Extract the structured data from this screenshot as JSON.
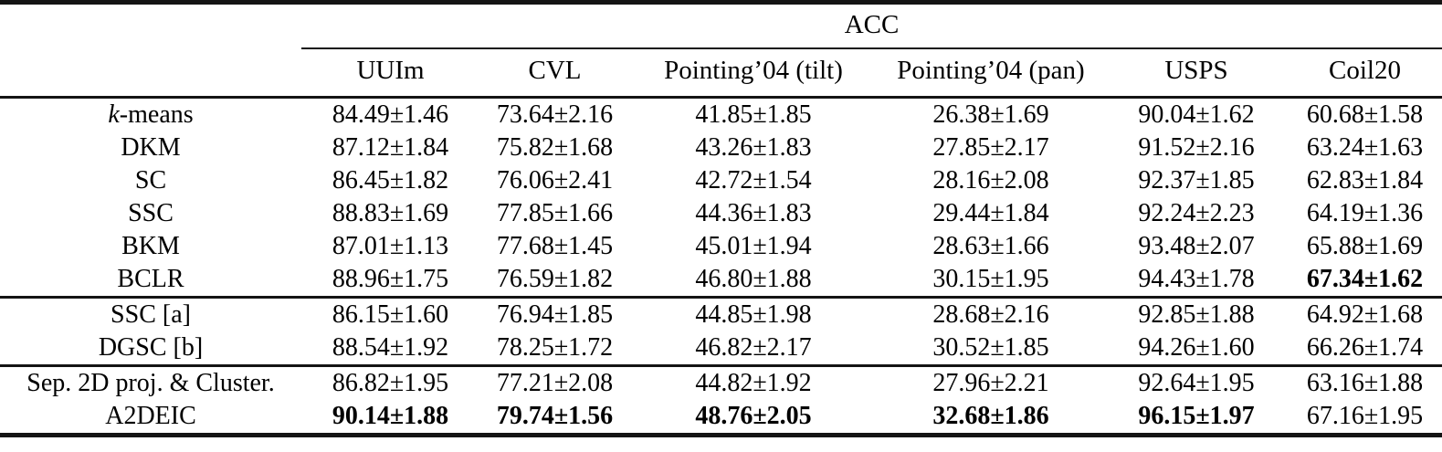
{
  "table": {
    "span_header": "ACC",
    "columns": [
      "UUIm",
      "CVL",
      "Pointing’04 (tilt)",
      "Pointing’04 (pan)",
      "USPS",
      "Coil20"
    ],
    "groups": [
      {
        "rows": [
          {
            "method": "k-means",
            "italic_first": true,
            "values": [
              "84.49±1.46",
              "73.64±2.16",
              "41.85±1.85",
              "26.38±1.69",
              "90.04±1.62",
              "60.68±1.58"
            ],
            "bold": [
              false,
              false,
              false,
              false,
              false,
              false
            ]
          },
          {
            "method": "DKM",
            "italic_first": false,
            "values": [
              "87.12±1.84",
              "75.82±1.68",
              "43.26±1.83",
              "27.85±2.17",
              "91.52±2.16",
              "63.24±1.63"
            ],
            "bold": [
              false,
              false,
              false,
              false,
              false,
              false
            ]
          },
          {
            "method": "SC",
            "italic_first": false,
            "values": [
              "86.45±1.82",
              "76.06±2.41",
              "42.72±1.54",
              "28.16±2.08",
              "92.37±1.85",
              "62.83±1.84"
            ],
            "bold": [
              false,
              false,
              false,
              false,
              false,
              false
            ]
          },
          {
            "method": "SSC",
            "italic_first": false,
            "values": [
              "88.83±1.69",
              "77.85±1.66",
              "44.36±1.83",
              "29.44±1.84",
              "92.24±2.23",
              "64.19±1.36"
            ],
            "bold": [
              false,
              false,
              false,
              false,
              false,
              false
            ]
          },
          {
            "method": "BKM",
            "italic_first": false,
            "values": [
              "87.01±1.13",
              "77.68±1.45",
              "45.01±1.94",
              "28.63±1.66",
              "93.48±2.07",
              "65.88±1.69"
            ],
            "bold": [
              false,
              false,
              false,
              false,
              false,
              false
            ]
          },
          {
            "method": "BCLR",
            "italic_first": false,
            "values": [
              "88.96±1.75",
              "76.59±1.82",
              "46.80±1.88",
              "30.15±1.95",
              "94.43±1.78",
              "67.34±1.62"
            ],
            "bold": [
              false,
              false,
              false,
              false,
              false,
              true
            ]
          }
        ]
      },
      {
        "rows": [
          {
            "method": "SSC [a]",
            "italic_first": false,
            "values": [
              "86.15±1.60",
              "76.94±1.85",
              "44.85±1.98",
              "28.68±2.16",
              "92.85±1.88",
              "64.92±1.68"
            ],
            "bold": [
              false,
              false,
              false,
              false,
              false,
              false
            ]
          },
          {
            "method": "DGSC [b]",
            "italic_first": false,
            "values": [
              "88.54±1.92",
              "78.25±1.72",
              "46.82±2.17",
              "30.52±1.85",
              "94.26±1.60",
              "66.26±1.74"
            ],
            "bold": [
              false,
              false,
              false,
              false,
              false,
              false
            ]
          }
        ]
      },
      {
        "rows": [
          {
            "method": "Sep. 2D proj. & Cluster.",
            "italic_first": false,
            "values": [
              "86.82±1.95",
              "77.21±2.08",
              "44.82±1.92",
              "27.96±2.21",
              "92.64±1.95",
              "63.16±1.88"
            ],
            "bold": [
              false,
              false,
              false,
              false,
              false,
              false
            ]
          },
          {
            "method": "A2DEIC",
            "italic_first": false,
            "values": [
              "90.14±1.88",
              "79.74±1.56",
              "48.76±2.05",
              "32.68±1.86",
              "96.15±1.97",
              "67.16±1.95"
            ],
            "bold": [
              true,
              true,
              true,
              true,
              true,
              false
            ]
          }
        ]
      }
    ]
  },
  "colors": {
    "text": "#000000",
    "rule": "#141414",
    "background": "#ffffff"
  }
}
